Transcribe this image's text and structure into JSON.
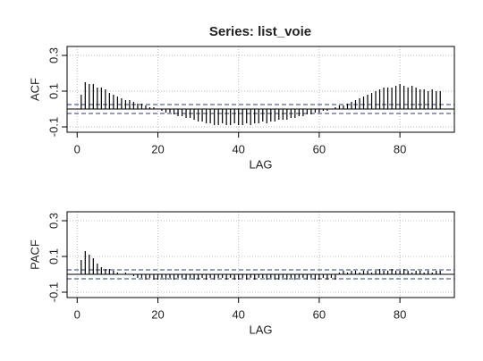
{
  "chart_data": [
    {
      "type": "stem",
      "title": "Series:  list_voie",
      "ylabel": "ACF",
      "xlabel": "LAG",
      "x": [
        1,
        2,
        3,
        4,
        5,
        6,
        7,
        8,
        9,
        10,
        11,
        12,
        13,
        14,
        15,
        16,
        17,
        18,
        19,
        20,
        21,
        22,
        23,
        24,
        25,
        26,
        27,
        28,
        29,
        30,
        31,
        32,
        33,
        34,
        35,
        36,
        37,
        38,
        39,
        40,
        41,
        42,
        43,
        44,
        45,
        46,
        47,
        48,
        49,
        50,
        51,
        52,
        53,
        54,
        55,
        56,
        57,
        58,
        59,
        60,
        61,
        62,
        63,
        64,
        65,
        66,
        67,
        68,
        69,
        70,
        71,
        72,
        73,
        74,
        75,
        76,
        77,
        78,
        79,
        80,
        81,
        82,
        83,
        84,
        85,
        86,
        87,
        88,
        89,
        90
      ],
      "values": [
        0.08,
        0.15,
        0.14,
        0.14,
        0.12,
        0.12,
        0.11,
        0.09,
        0.08,
        0.07,
        0.06,
        0.05,
        0.05,
        0.04,
        0.03,
        0.03,
        0.02,
        0.01,
        0.01,
        0.0,
        -0.01,
        -0.02,
        -0.02,
        -0.03,
        -0.04,
        -0.04,
        -0.05,
        -0.05,
        -0.06,
        -0.07,
        -0.07,
        -0.08,
        -0.08,
        -0.09,
        -0.09,
        -0.08,
        -0.09,
        -0.09,
        -0.08,
        -0.09,
        -0.09,
        -0.08,
        -0.09,
        -0.08,
        -0.08,
        -0.07,
        -0.08,
        -0.07,
        -0.07,
        -0.06,
        -0.06,
        -0.06,
        -0.05,
        -0.05,
        -0.04,
        -0.04,
        -0.03,
        -0.03,
        -0.02,
        -0.02,
        -0.01,
        -0.01,
        0.0,
        0.01,
        0.02,
        0.02,
        0.03,
        0.04,
        0.05,
        0.06,
        0.07,
        0.08,
        0.09,
        0.1,
        0.11,
        0.12,
        0.12,
        0.12,
        0.13,
        0.14,
        0.13,
        0.12,
        0.13,
        0.12,
        0.11,
        0.11,
        0.1,
        0.11,
        0.1,
        0.1
      ],
      "color": "#000000",
      "ci_bounds": [
        -0.025,
        0.025
      ],
      "ci_color": "#1f3a93",
      "xlim": [
        -2.5,
        93.5
      ],
      "ylim": [
        -0.13,
        0.35
      ],
      "xticks": [
        0,
        20,
        40,
        60,
        80
      ],
      "yticks": [
        -0.1,
        0.1,
        0.3
      ],
      "grid": true
    },
    {
      "type": "stem",
      "ylabel": "PACF",
      "xlabel": "LAG",
      "x": [
        1,
        2,
        3,
        4,
        5,
        6,
        7,
        8,
        9,
        10,
        11,
        12,
        13,
        14,
        15,
        16,
        17,
        18,
        19,
        20,
        21,
        22,
        23,
        24,
        25,
        26,
        27,
        28,
        29,
        30,
        31,
        32,
        33,
        34,
        35,
        36,
        37,
        38,
        39,
        40,
        41,
        42,
        43,
        44,
        45,
        46,
        47,
        48,
        49,
        50,
        51,
        52,
        53,
        54,
        55,
        56,
        57,
        58,
        59,
        60,
        61,
        62,
        63,
        64,
        65,
        66,
        67,
        68,
        69,
        70,
        71,
        72,
        73,
        74,
        75,
        76,
        77,
        78,
        79,
        80,
        81,
        82,
        83,
        84,
        85,
        86,
        87,
        88,
        89,
        90
      ],
      "values": [
        0.08,
        0.13,
        0.11,
        0.09,
        0.06,
        0.04,
        0.03,
        0.03,
        0.02,
        0.01,
        0.0,
        0.01,
        0.0,
        -0.01,
        -0.02,
        -0.02,
        -0.03,
        -0.02,
        -0.03,
        -0.03,
        -0.02,
        -0.03,
        -0.02,
        -0.03,
        -0.02,
        -0.02,
        -0.03,
        -0.02,
        -0.03,
        -0.03,
        -0.02,
        -0.03,
        -0.02,
        -0.03,
        -0.02,
        -0.02,
        -0.03,
        -0.02,
        -0.03,
        -0.03,
        -0.02,
        -0.03,
        -0.02,
        -0.03,
        -0.02,
        -0.02,
        -0.03,
        -0.02,
        -0.03,
        -0.03,
        -0.02,
        -0.03,
        -0.02,
        -0.03,
        -0.02,
        -0.02,
        -0.03,
        -0.02,
        -0.03,
        -0.03,
        -0.02,
        -0.03,
        -0.02,
        -0.03,
        0.01,
        0.02,
        0.01,
        0.02,
        0.02,
        0.01,
        0.02,
        0.02,
        0.01,
        0.02,
        0.03,
        0.02,
        0.02,
        0.03,
        0.02,
        0.02,
        0.03,
        0.02,
        0.01,
        0.02,
        0.02,
        0.01,
        0.02,
        0.01,
        0.02,
        0.02
      ],
      "color": "#000000",
      "ci_bounds": [
        -0.025,
        0.025
      ],
      "ci_color": "#1f3a93",
      "xlim": [
        -2.5,
        93.5
      ],
      "ylim": [
        -0.13,
        0.35
      ],
      "xticks": [
        0,
        20,
        40,
        60,
        80
      ],
      "yticks": [
        -0.1,
        0.1,
        0.3
      ],
      "grid": true
    }
  ]
}
